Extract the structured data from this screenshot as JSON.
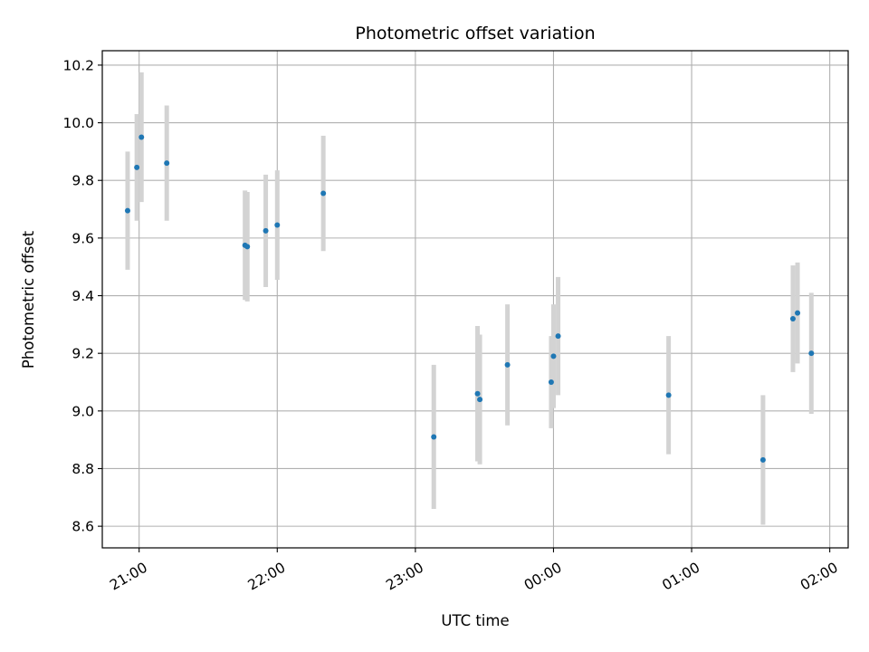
{
  "chart_data": {
    "type": "scatter",
    "title": "Photometric offset variation",
    "xlabel": "UTC time",
    "ylabel": "Photometric offset",
    "grid": true,
    "x_is_time": true,
    "xlim": [
      "20:44",
      "26:08"
    ],
    "ylim": [
      8.525,
      10.25
    ],
    "yticks": [
      8.6,
      8.8,
      9.0,
      9.2,
      9.4,
      9.6,
      9.8,
      10.0,
      10.2
    ],
    "yticklabels": [
      "8.6",
      "8.8",
      "9.0",
      "9.2",
      "9.4",
      "9.6",
      "9.8",
      "10.0",
      "10.2"
    ],
    "xticks": [
      "21:00",
      "22:00",
      "23:00",
      "24:00",
      "25:00",
      "26:00"
    ],
    "xticklabels": [
      "21:00",
      "22:00",
      "23:00",
      "00:00",
      "01:00",
      "02:00"
    ],
    "marker_color": "#1f77b4",
    "errorbar_color": "#d3d3d3",
    "points": [
      {
        "x": "20:55",
        "y": 9.695,
        "err": 0.205
      },
      {
        "x": "20:59",
        "y": 9.845,
        "err": 0.185
      },
      {
        "x": "21:01",
        "y": 9.95,
        "err": 0.225
      },
      {
        "x": "21:12",
        "y": 9.86,
        "err": 0.2
      },
      {
        "x": "21:46",
        "y": 9.575,
        "err": 0.19
      },
      {
        "x": "21:47",
        "y": 9.57,
        "err": 0.19
      },
      {
        "x": "21:55",
        "y": 9.625,
        "err": 0.195
      },
      {
        "x": "22:00",
        "y": 9.645,
        "err": 0.19
      },
      {
        "x": "22:20",
        "y": 9.755,
        "err": 0.2
      },
      {
        "x": "23:08",
        "y": 8.91,
        "err": 0.25
      },
      {
        "x": "23:27",
        "y": 9.06,
        "err": 0.235
      },
      {
        "x": "23:28",
        "y": 9.04,
        "err": 0.225
      },
      {
        "x": "23:40",
        "y": 9.16,
        "err": 0.21
      },
      {
        "x": "23:59",
        "y": 9.1,
        "err": 0.16
      },
      {
        "x": "24:00",
        "y": 9.19,
        "err": 0.18
      },
      {
        "x": "24:02",
        "y": 9.26,
        "err": 0.205
      },
      {
        "x": "24:50",
        "y": 9.055,
        "err": 0.205
      },
      {
        "x": "25:31",
        "y": 8.83,
        "err": 0.225
      },
      {
        "x": "25:44",
        "y": 9.32,
        "err": 0.185
      },
      {
        "x": "25:46",
        "y": 9.34,
        "err": 0.175
      },
      {
        "x": "25:52",
        "y": 9.2,
        "err": 0.21
      }
    ]
  }
}
